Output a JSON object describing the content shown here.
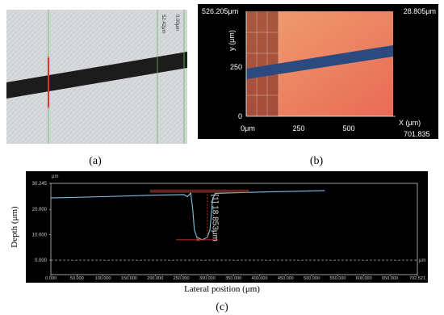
{
  "panel_a": {
    "label": "(a)",
    "annotations": [
      "52.42μm",
      "0.00μm"
    ]
  },
  "panel_b": {
    "label": "(b)",
    "corner_left": "526.205μm",
    "corner_right": "28.805μm",
    "y_axis_label": "y (μm)",
    "y_ticks": [
      "0",
      "250"
    ],
    "x_ticks": [
      "0μm",
      "250",
      "500"
    ],
    "x_axis_label": "X (μm)",
    "x_end": "701.835"
  },
  "chart_data": {
    "type": "line",
    "label": "(c)",
    "xlabel": "Lateral position (μm)",
    "ylabel": "Depth (μm)",
    "x_unit": "μm",
    "y_unit": "μm",
    "annotation": "[1] 18.853μm",
    "x": [
      0,
      100,
      200,
      255,
      262,
      268,
      272,
      275,
      280,
      290,
      300,
      305,
      310,
      315,
      400,
      525
    ],
    "series": [
      {
        "color": "#7cc4e6",
        "values": [
          24.5,
          25,
          25.6,
          25.8,
          25,
          26.5,
          20,
          12,
          9,
          8,
          9,
          12,
          24,
          26.3,
          26.8,
          27.4
        ]
      }
    ],
    "xlim": [
      0,
      702.521
    ],
    "ylim": [
      -5.7,
      30.245
    ],
    "xticks": [
      {
        "value": 0,
        "label": "0.000"
      },
      {
        "value": 50,
        "label": "50.000"
      },
      {
        "value": 100,
        "label": "100.000"
      },
      {
        "value": 150,
        "label": "150.000"
      },
      {
        "value": 200,
        "label": "200.000"
      },
      {
        "value": 250,
        "label": "250.000"
      },
      {
        "value": 300,
        "label": "300.000"
      },
      {
        "value": 350,
        "label": "350.000"
      },
      {
        "value": 400,
        "label": "400.000"
      },
      {
        "value": 450,
        "label": "450.000"
      },
      {
        "value": 500,
        "label": "500.000"
      },
      {
        "value": 550,
        "label": "550.000"
      },
      {
        "value": 600,
        "label": "600.000"
      },
      {
        "value": 650,
        "label": "650.000"
      },
      {
        "value": 702.521,
        "label": "702.521"
      }
    ],
    "yticks": [
      {
        "value": 0,
        "label": "0.000"
      },
      {
        "value": 10,
        "label": "10.000"
      },
      {
        "value": 20,
        "label": "20.000"
      },
      {
        "value": 30.245,
        "label": "30.245"
      }
    ]
  }
}
